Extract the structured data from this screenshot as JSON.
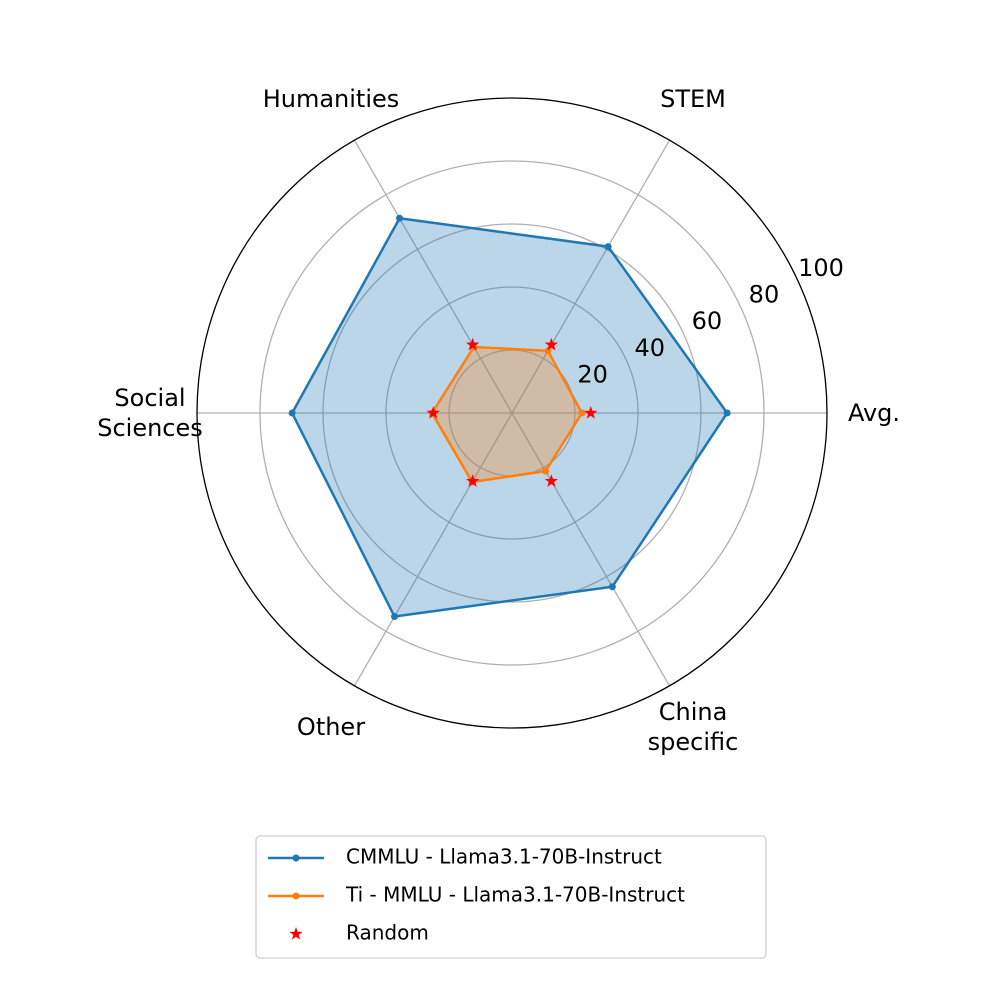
{
  "chart_data": {
    "type": "radar",
    "categories": [
      "Avg.",
      "STEM",
      "Humanities",
      "Social\nSciences",
      "Other",
      "China\nspecific"
    ],
    "ylim": [
      0,
      100
    ],
    "yticks": [
      20,
      40,
      60,
      80,
      100
    ],
    "grid": true,
    "legend": "lower center",
    "series": [
      {
        "name": "CMMLU - Llama3.1-70B-Instruct",
        "color": "#1f77b4",
        "fill": true,
        "line": true,
        "marker": "o",
        "values": [
          68.3,
          61,
          71.4,
          69.8,
          74.6,
          63.7
        ]
      },
      {
        "name": "Ti - MMLU - Llama3.1-70B-Instruct",
        "color": "#ff7f0e",
        "fill": true,
        "line": true,
        "marker": "o",
        "values": [
          22.2,
          22.8,
          24.2,
          25.4,
          25.3,
          21.3
        ]
      },
      {
        "name": "Random",
        "color": "#ff0000",
        "fill": false,
        "line": false,
        "marker": "*",
        "values": [
          25,
          25,
          25,
          25,
          25,
          25
        ]
      }
    ]
  }
}
